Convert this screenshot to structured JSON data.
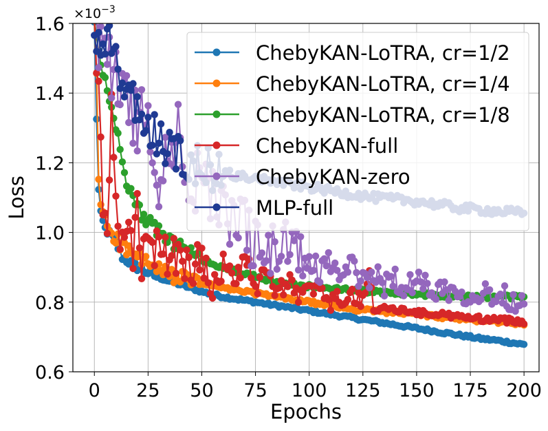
{
  "chart_data": {
    "type": "line",
    "title": "",
    "xlabel": "Epochs",
    "ylabel": "Loss",
    "y_multiplier": "×10",
    "y_multiplier_exp": "−3",
    "xlim": [
      -10,
      207
    ],
    "ylim": [
      0.6,
      1.6
    ],
    "grid": true,
    "legend_position": "upper-right",
    "x_ticks": [
      {
        "value": 0,
        "label": "0"
      },
      {
        "value": 25,
        "label": "25"
      },
      {
        "value": 50,
        "label": "50"
      },
      {
        "value": 75,
        "label": "75"
      },
      {
        "value": 100,
        "label": "100"
      },
      {
        "value": 125,
        "label": "125"
      },
      {
        "value": 150,
        "label": "150"
      },
      {
        "value": 175,
        "label": "175"
      },
      {
        "value": 200,
        "label": "200"
      }
    ],
    "y_ticks": [
      {
        "value": 0.6,
        "label": "0.6"
      },
      {
        "value": 0.8,
        "label": "0.8"
      },
      {
        "value": 1.0,
        "label": "1.0"
      },
      {
        "value": 1.2,
        "label": "1.2"
      },
      {
        "value": 1.4,
        "label": "1.4"
      },
      {
        "value": 1.6,
        "label": "1.6"
      }
    ],
    "series": [
      {
        "name": "ChebyKAN-LoTRA, cr=1/2",
        "color": "#1f77b4",
        "points": [
          [
            0,
            1.6
          ],
          [
            1,
            1.33
          ],
          [
            2,
            1.12
          ],
          [
            3,
            1.05
          ],
          [
            5,
            1.01
          ],
          [
            8,
            0.99
          ],
          [
            10,
            0.97
          ],
          [
            13,
            0.93
          ],
          [
            15,
            0.92
          ],
          [
            20,
            0.9
          ],
          [
            25,
            0.885
          ],
          [
            30,
            0.87
          ],
          [
            35,
            0.86
          ],
          [
            40,
            0.85
          ],
          [
            45,
            0.84
          ],
          [
            50,
            0.83
          ],
          [
            60,
            0.815
          ],
          [
            70,
            0.805
          ],
          [
            80,
            0.795
          ],
          [
            90,
            0.785
          ],
          [
            100,
            0.775
          ],
          [
            110,
            0.765
          ],
          [
            120,
            0.755
          ],
          [
            130,
            0.745
          ],
          [
            140,
            0.735
          ],
          [
            150,
            0.725
          ],
          [
            160,
            0.715
          ],
          [
            170,
            0.705
          ],
          [
            180,
            0.695
          ],
          [
            190,
            0.688
          ],
          [
            200,
            0.678
          ]
        ]
      },
      {
        "name": "ChebyKAN-LoTRA, cr=1/4",
        "color": "#ff7f0e",
        "points": [
          [
            0,
            1.6
          ],
          [
            1,
            1.44
          ],
          [
            2,
            1.16
          ],
          [
            3,
            1.08
          ],
          [
            5,
            1.04
          ],
          [
            8,
            1.0
          ],
          [
            12,
            0.97
          ],
          [
            15,
            0.95
          ],
          [
            20,
            0.93
          ],
          [
            25,
            0.91
          ],
          [
            30,
            0.89
          ],
          [
            40,
            0.87
          ],
          [
            50,
            0.855
          ],
          [
            60,
            0.84
          ],
          [
            70,
            0.83
          ],
          [
            80,
            0.82
          ],
          [
            90,
            0.81
          ],
          [
            100,
            0.8
          ],
          [
            110,
            0.79
          ],
          [
            120,
            0.78
          ],
          [
            130,
            0.775
          ],
          [
            140,
            0.77
          ],
          [
            150,
            0.765
          ],
          [
            160,
            0.758
          ],
          [
            170,
            0.752
          ],
          [
            180,
            0.747
          ],
          [
            190,
            0.742
          ],
          [
            200,
            0.738
          ]
        ]
      },
      {
        "name": "ChebyKAN-LoTRA, cr=1/8",
        "color": "#2ca02c",
        "points": [
          [
            0,
            1.6
          ],
          [
            2,
            1.52
          ],
          [
            4,
            1.46
          ],
          [
            6,
            1.4
          ],
          [
            8,
            1.36
          ],
          [
            10,
            1.3
          ],
          [
            13,
            1.22
          ],
          [
            15,
            1.15
          ],
          [
            18,
            1.1
          ],
          [
            20,
            1.07
          ],
          [
            25,
            1.03
          ],
          [
            30,
            1.0
          ],
          [
            35,
            0.98
          ],
          [
            40,
            0.96
          ],
          [
            45,
            0.94
          ],
          [
            50,
            0.92
          ],
          [
            60,
            0.9
          ],
          [
            70,
            0.88
          ],
          [
            80,
            0.865
          ],
          [
            90,
            0.85
          ],
          [
            100,
            0.845
          ],
          [
            110,
            0.84
          ],
          [
            120,
            0.835
          ],
          [
            130,
            0.83
          ],
          [
            140,
            0.825
          ],
          [
            150,
            0.823
          ],
          [
            160,
            0.82
          ],
          [
            170,
            0.818
          ],
          [
            180,
            0.816
          ],
          [
            190,
            0.815
          ],
          [
            200,
            0.814
          ]
        ]
      },
      {
        "name": "ChebyKAN-full",
        "color": "#d62728",
        "points": [
          [
            0,
            1.6
          ],
          [
            2,
            1.4
          ],
          [
            4,
            1.05
          ],
          [
            6,
            0.96
          ],
          [
            8,
            1.38
          ],
          [
            10,
            1.05
          ],
          [
            12,
            0.97
          ],
          [
            15,
            1.02
          ],
          [
            18,
            0.92
          ],
          [
            20,
            1.1
          ],
          [
            22,
            0.9
          ],
          [
            25,
            0.98
          ],
          [
            28,
            0.9
          ],
          [
            30,
            1.0
          ],
          [
            35,
            0.91
          ],
          [
            40,
            0.96
          ],
          [
            45,
            0.87
          ],
          [
            50,
            0.94
          ],
          [
            55,
            0.86
          ],
          [
            60,
            0.92
          ],
          [
            65,
            0.85
          ],
          [
            70,
            0.93
          ],
          [
            75,
            0.84
          ],
          [
            80,
            0.88
          ],
          [
            85,
            0.82
          ],
          [
            90,
            0.87
          ],
          [
            95,
            0.81
          ],
          [
            100,
            0.84
          ],
          [
            110,
            0.8
          ],
          [
            120,
            0.82
          ],
          [
            125,
            0.79
          ],
          [
            128,
            0.92
          ],
          [
            130,
            0.78
          ],
          [
            140,
            0.78
          ],
          [
            150,
            0.77
          ],
          [
            160,
            0.765
          ],
          [
            170,
            0.758
          ],
          [
            180,
            0.752
          ],
          [
            190,
            0.748
          ],
          [
            200,
            0.745
          ]
        ]
      },
      {
        "name": "ChebyKAN-zero",
        "color": "#9467bd",
        "points": [
          [
            0,
            1.6
          ],
          [
            5,
            1.5
          ],
          [
            10,
            1.45
          ],
          [
            15,
            1.4
          ],
          [
            20,
            1.3
          ],
          [
            25,
            1.35
          ],
          [
            30,
            1.1
          ],
          [
            35,
            1.25
          ],
          [
            40,
            1.3
          ],
          [
            45,
            1.05
          ],
          [
            50,
            1.2
          ],
          [
            55,
            1.1
          ],
          [
            60,
            1.1
          ],
          [
            65,
            1.0
          ],
          [
            70,
            1.05
          ],
          [
            75,
            0.95
          ],
          [
            80,
            0.96
          ],
          [
            85,
            0.93
          ],
          [
            90,
            0.98
          ],
          [
            95,
            0.9
          ],
          [
            100,
            0.93
          ],
          [
            105,
            0.88
          ],
          [
            110,
            0.92
          ],
          [
            115,
            0.87
          ],
          [
            120,
            0.9
          ],
          [
            125,
            0.86
          ],
          [
            130,
            0.88
          ],
          [
            135,
            0.85
          ],
          [
            140,
            0.87
          ],
          [
            145,
            0.84
          ],
          [
            150,
            0.86
          ],
          [
            160,
            0.84
          ],
          [
            170,
            0.83
          ],
          [
            180,
            0.825
          ],
          [
            190,
            0.82
          ],
          [
            200,
            0.79
          ]
        ]
      },
      {
        "name": "MLP-full",
        "color": "#1f3a93",
        "points": [
          [
            0,
            1.52
          ],
          [
            2,
            1.55
          ],
          [
            4,
            1.52
          ],
          [
            6,
            1.58
          ],
          [
            8,
            1.5
          ],
          [
            10,
            1.48
          ],
          [
            12,
            1.45
          ],
          [
            15,
            1.42
          ],
          [
            18,
            1.38
          ],
          [
            20,
            1.35
          ],
          [
            22,
            1.33
          ],
          [
            25,
            1.3
          ],
          [
            28,
            1.28
          ],
          [
            30,
            1.26
          ],
          [
            35,
            1.24
          ],
          [
            40,
            1.22
          ],
          [
            45,
            1.2
          ],
          [
            50,
            1.19
          ],
          [
            55,
            1.18
          ],
          [
            60,
            1.17
          ],
          [
            65,
            1.165
          ],
          [
            70,
            1.16
          ],
          [
            80,
            1.15
          ],
          [
            90,
            1.14
          ],
          [
            100,
            1.13
          ],
          [
            110,
            1.12
          ],
          [
            120,
            1.11
          ],
          [
            130,
            1.1
          ],
          [
            140,
            1.095
          ],
          [
            150,
            1.09
          ],
          [
            160,
            1.08
          ],
          [
            170,
            1.07
          ],
          [
            180,
            1.065
          ],
          [
            190,
            1.06
          ],
          [
            200,
            1.055
          ]
        ]
      }
    ]
  }
}
